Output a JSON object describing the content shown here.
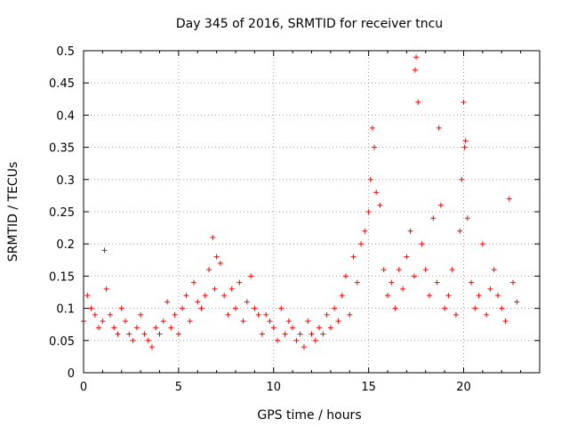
{
  "chart_data": {
    "type": "scatter",
    "title": "Day 345 of 2016, SRMTID for receiver tncu",
    "xlabel": "GPS time / hours",
    "ylabel": "SRMTID / TECUs",
    "xlim": [
      0,
      24
    ],
    "ylim": [
      0,
      0.5
    ],
    "xticks": [
      0,
      5,
      10,
      15,
      20
    ],
    "xtick_labels": [
      "0",
      "5",
      "10",
      "15",
      "20"
    ],
    "yticks": [
      0,
      0.05,
      0.1,
      0.15,
      0.2,
      0.25,
      0.3,
      0.35,
      0.4,
      0.45,
      0.5
    ],
    "ytick_labels": [
      "0",
      "0.05",
      "0.1",
      "0.15",
      "0.2",
      "0.25",
      "0.3",
      "0.35",
      "0.4",
      "0.45",
      "0.5"
    ],
    "grid": true,
    "marker": "+",
    "color": "#ff0000",
    "series": [
      {
        "name": "SRMTID",
        "x": [
          0.0,
          0.2,
          0.4,
          0.6,
          0.8,
          1.0,
          1.1,
          1.2,
          1.4,
          1.6,
          1.8,
          2.0,
          2.2,
          2.4,
          2.6,
          2.8,
          3.0,
          3.2,
          3.4,
          3.6,
          3.8,
          4.0,
          4.2,
          4.4,
          4.6,
          4.8,
          5.0,
          5.2,
          5.4,
          5.6,
          5.8,
          6.0,
          6.2,
          6.4,
          6.6,
          6.8,
          6.9,
          7.0,
          7.2,
          7.4,
          7.6,
          7.8,
          8.0,
          8.2,
          8.4,
          8.6,
          8.8,
          9.0,
          9.2,
          9.4,
          9.6,
          9.8,
          10.0,
          10.2,
          10.4,
          10.6,
          10.8,
          11.0,
          11.2,
          11.4,
          11.6,
          11.8,
          12.0,
          12.2,
          12.4,
          12.6,
          12.8,
          13.0,
          13.2,
          13.4,
          13.6,
          13.8,
          14.0,
          14.2,
          14.4,
          14.6,
          14.8,
          15.0,
          15.1,
          15.2,
          15.3,
          15.4,
          15.6,
          15.8,
          16.0,
          16.2,
          16.4,
          16.6,
          16.8,
          17.0,
          17.2,
          17.4,
          17.45,
          17.5,
          17.6,
          17.8,
          18.0,
          18.2,
          18.4,
          18.6,
          18.7,
          18.8,
          19.0,
          19.2,
          19.4,
          19.6,
          19.8,
          19.9,
          20.0,
          20.05,
          20.1,
          20.2,
          20.4,
          20.6,
          20.8,
          21.0,
          21.2,
          21.4,
          21.6,
          21.8,
          22.0,
          22.2,
          22.4,
          22.6,
          22.8
        ],
        "y": [
          0.08,
          0.12,
          0.1,
          0.09,
          0.07,
          0.08,
          0.19,
          0.13,
          0.09,
          0.07,
          0.06,
          0.1,
          0.08,
          0.06,
          0.05,
          0.07,
          0.09,
          0.06,
          0.05,
          0.04,
          0.07,
          0.06,
          0.08,
          0.11,
          0.07,
          0.09,
          0.06,
          0.1,
          0.12,
          0.08,
          0.14,
          0.11,
          0.1,
          0.12,
          0.16,
          0.21,
          0.13,
          0.18,
          0.17,
          0.12,
          0.09,
          0.13,
          0.1,
          0.14,
          0.08,
          0.11,
          0.15,
          0.1,
          0.09,
          0.06,
          0.09,
          0.08,
          0.07,
          0.05,
          0.1,
          0.06,
          0.08,
          0.07,
          0.05,
          0.06,
          0.04,
          0.08,
          0.06,
          0.05,
          0.07,
          0.06,
          0.09,
          0.07,
          0.1,
          0.08,
          0.12,
          0.15,
          0.09,
          0.18,
          0.14,
          0.2,
          0.22,
          0.25,
          0.3,
          0.38,
          0.35,
          0.28,
          0.26,
          0.16,
          0.12,
          0.14,
          0.1,
          0.16,
          0.13,
          0.18,
          0.22,
          0.15,
          0.47,
          0.49,
          0.42,
          0.2,
          0.16,
          0.12,
          0.24,
          0.14,
          0.38,
          0.26,
          0.1,
          0.12,
          0.16,
          0.09,
          0.22,
          0.3,
          0.42,
          0.35,
          0.36,
          0.24,
          0.14,
          0.1,
          0.12,
          0.2,
          0.09,
          0.13,
          0.16,
          0.12,
          0.1,
          0.08,
          0.27,
          0.14,
          0.11
        ]
      }
    ]
  }
}
